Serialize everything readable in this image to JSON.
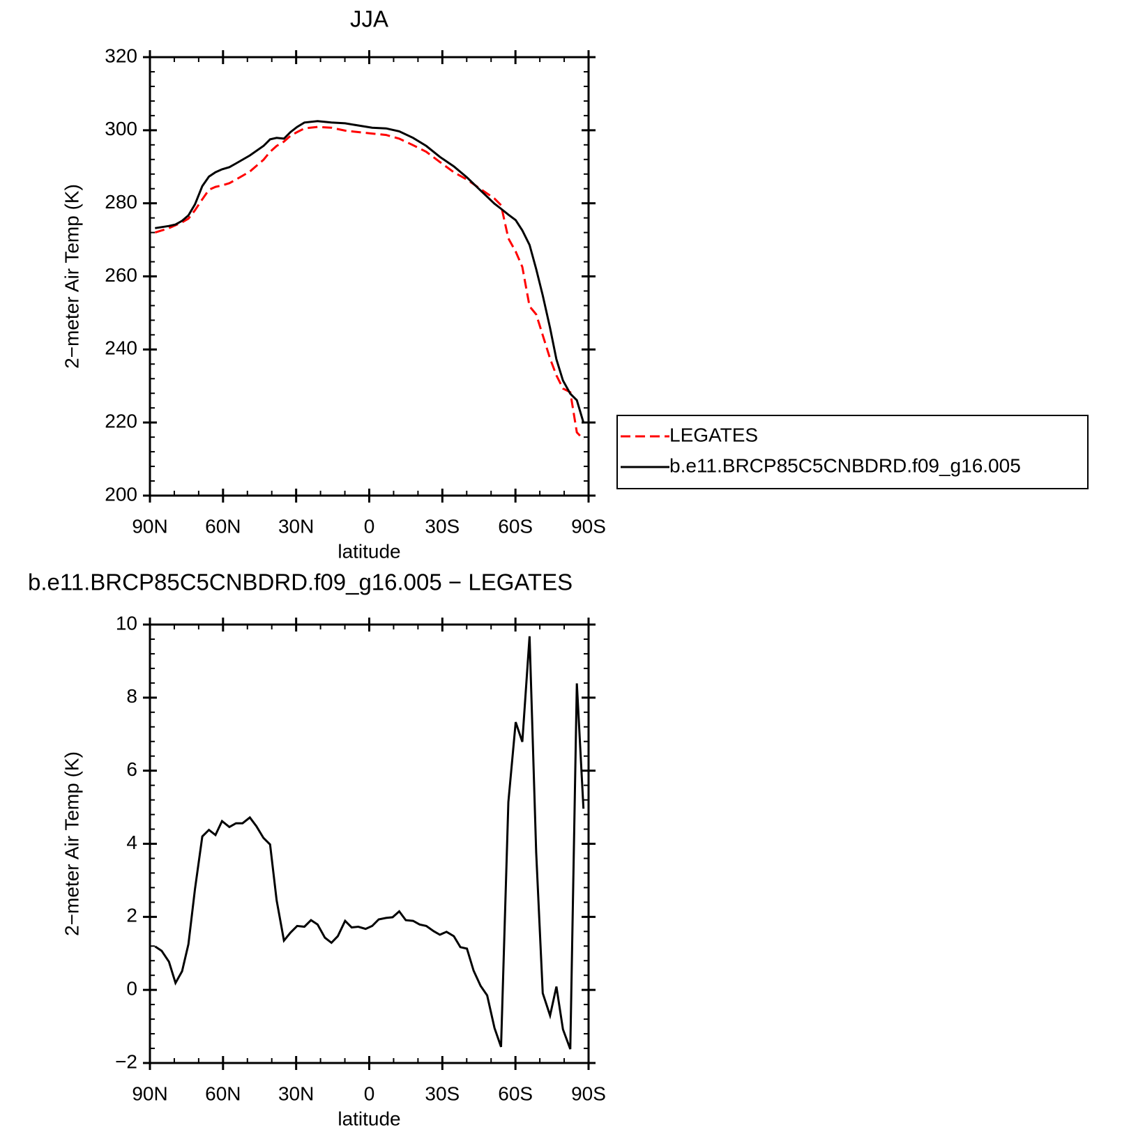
{
  "chart_data": [
    {
      "type": "line",
      "title": "JJA",
      "y_label": "2−meter Air Temp (K)",
      "x_label": "latitude",
      "xlim": [
        90,
        -90
      ],
      "xticks": [
        {
          "value": 90,
          "label": "90N"
        },
        {
          "value": 60,
          "label": "60N"
        },
        {
          "value": 30,
          "label": "30N"
        },
        0,
        {
          "value": -30,
          "label": "30S"
        },
        {
          "value": -60,
          "label": "60S"
        },
        {
          "value": -90,
          "label": "90S"
        }
      ],
      "ylim": [
        200,
        320
      ],
      "yticks": [
        200,
        220,
        240,
        260,
        280,
        300,
        320
      ],
      "legend": "right",
      "x": [
        87.9,
        82.2,
        79.5,
        76.8,
        74.2,
        71.5,
        68.5,
        65.8,
        63.1,
        60.4,
        57.4,
        54.7,
        49.0,
        43.4,
        40.7,
        38.0,
        35.0,
        32.3,
        29.6,
        26.6,
        21.2,
        15.5,
        9.9,
        4.5,
        -1.2,
        -6.9,
        -12.3,
        -18.0,
        -23.4,
        -29.0,
        -34.7,
        -40.1,
        -45.7,
        -51.4,
        -54.1,
        -57.1,
        -60.1,
        -62.8,
        -65.8,
        -68.5,
        -71.2,
        -74.2,
        -76.8,
        -79.5,
        -82.5,
        -85.2,
        -87.9
      ],
      "series": [
        {
          "name": "LEGATES",
          "color": "#ff0000",
          "line_style": "dashed",
          "values": [
            272.0,
            273.2,
            274.0,
            274.8,
            275.8,
            278.1,
            281.1,
            283.7,
            284.5,
            284.9,
            285.5,
            286.5,
            288.7,
            291.9,
            294.1,
            295.7,
            296.9,
            298.5,
            299.5,
            300.5,
            300.9,
            300.7,
            299.9,
            299.5,
            299.1,
            298.7,
            297.7,
            295.9,
            294.1,
            291.3,
            288.5,
            286.5,
            283.9,
            281.3,
            279.5,
            270.4,
            266.8,
            262.6,
            251.8,
            249.6,
            243.9,
            237.5,
            232.9,
            229.3,
            228.3,
            217.3,
            215.4
          ]
        },
        {
          "name": "b.e11.BRCP85C5CNBDRD.f09_g16.005",
          "color": "#000000",
          "line_style": "solid",
          "values": [
            273.2,
            273.8,
            274.2,
            275.2,
            276.7,
            279.7,
            284.7,
            287.3,
            288.5,
            289.3,
            289.9,
            290.9,
            293.1,
            295.7,
            297.5,
            297.9,
            297.7,
            299.5,
            300.9,
            302.1,
            302.5,
            302.1,
            301.9,
            301.3,
            300.7,
            300.5,
            299.7,
            297.9,
            295.7,
            292.7,
            290.1,
            287.1,
            283.5,
            279.9,
            278.5,
            276.9,
            275.4,
            272.6,
            268.6,
            262.0,
            254.8,
            245.9,
            237.3,
            231.5,
            227.9,
            226.1,
            220.0
          ]
        }
      ]
    },
    {
      "type": "line",
      "title": "b.e11.BRCP85C5CNBDRD.f09_g16.005 − LEGATES",
      "y_label": "2−meter Air Temp (K)",
      "x_label": "latitude",
      "xlim": [
        90,
        -90
      ],
      "xticks": [
        {
          "value": 90,
          "label": "90N"
        },
        {
          "value": 60,
          "label": "60N"
        },
        {
          "value": 30,
          "label": "30N"
        },
        0,
        {
          "value": -30,
          "label": "30S"
        },
        {
          "value": -60,
          "label": "60S"
        },
        {
          "value": -90,
          "label": "90S"
        }
      ],
      "ylim": [
        -2,
        10
      ],
      "yticks": [
        {
          "value": -2,
          "label": "−2"
        },
        0,
        2,
        4,
        6,
        8,
        10
      ],
      "x": [
        87.9,
        85.2,
        82.2,
        79.5,
        76.8,
        74.2,
        71.5,
        68.5,
        65.8,
        63.1,
        60.4,
        57.4,
        54.7,
        52.0,
        49.0,
        46.3,
        43.4,
        40.7,
        38.0,
        35.0,
        32.3,
        29.6,
        26.6,
        23.9,
        21.2,
        18.2,
        15.5,
        12.9,
        9.9,
        7.2,
        4.5,
        1.5,
        -1.2,
        -3.9,
        -6.9,
        -9.6,
        -12.3,
        -15.0,
        -18.0,
        -20.7,
        -23.4,
        -26.4,
        -29.0,
        -31.7,
        -34.7,
        -37.4,
        -40.1,
        -42.8,
        -45.7,
        -48.4,
        -51.4,
        -54.1,
        -57.1,
        -60.1,
        -62.8,
        -65.8,
        -68.5,
        -71.2,
        -74.2,
        -76.8,
        -79.5,
        -82.5,
        -85.2,
        -87.9
      ],
      "series": [
        {
          "color": "#000000",
          "line_style": "solid",
          "values": [
            1.19,
            1.07,
            0.77,
            0.19,
            0.51,
            1.25,
            2.76,
            4.2,
            4.38,
            4.24,
            4.62,
            4.46,
            4.56,
            4.56,
            4.72,
            4.48,
            4.16,
            3.98,
            2.45,
            1.35,
            1.57,
            1.75,
            1.73,
            1.91,
            1.79,
            1.43,
            1.29,
            1.47,
            1.89,
            1.71,
            1.73,
            1.67,
            1.75,
            1.93,
            1.97,
            1.99,
            2.15,
            1.91,
            1.89,
            1.79,
            1.75,
            1.61,
            1.51,
            1.59,
            1.47,
            1.17,
            1.13,
            0.53,
            0.11,
            -0.15,
            -1.04,
            -1.56,
            5.14,
            7.33,
            6.79,
            9.68,
            3.76,
            -0.09,
            -0.7,
            0.09,
            -1.08,
            -1.62,
            8.39,
            4.96
          ]
        }
      ]
    }
  ]
}
